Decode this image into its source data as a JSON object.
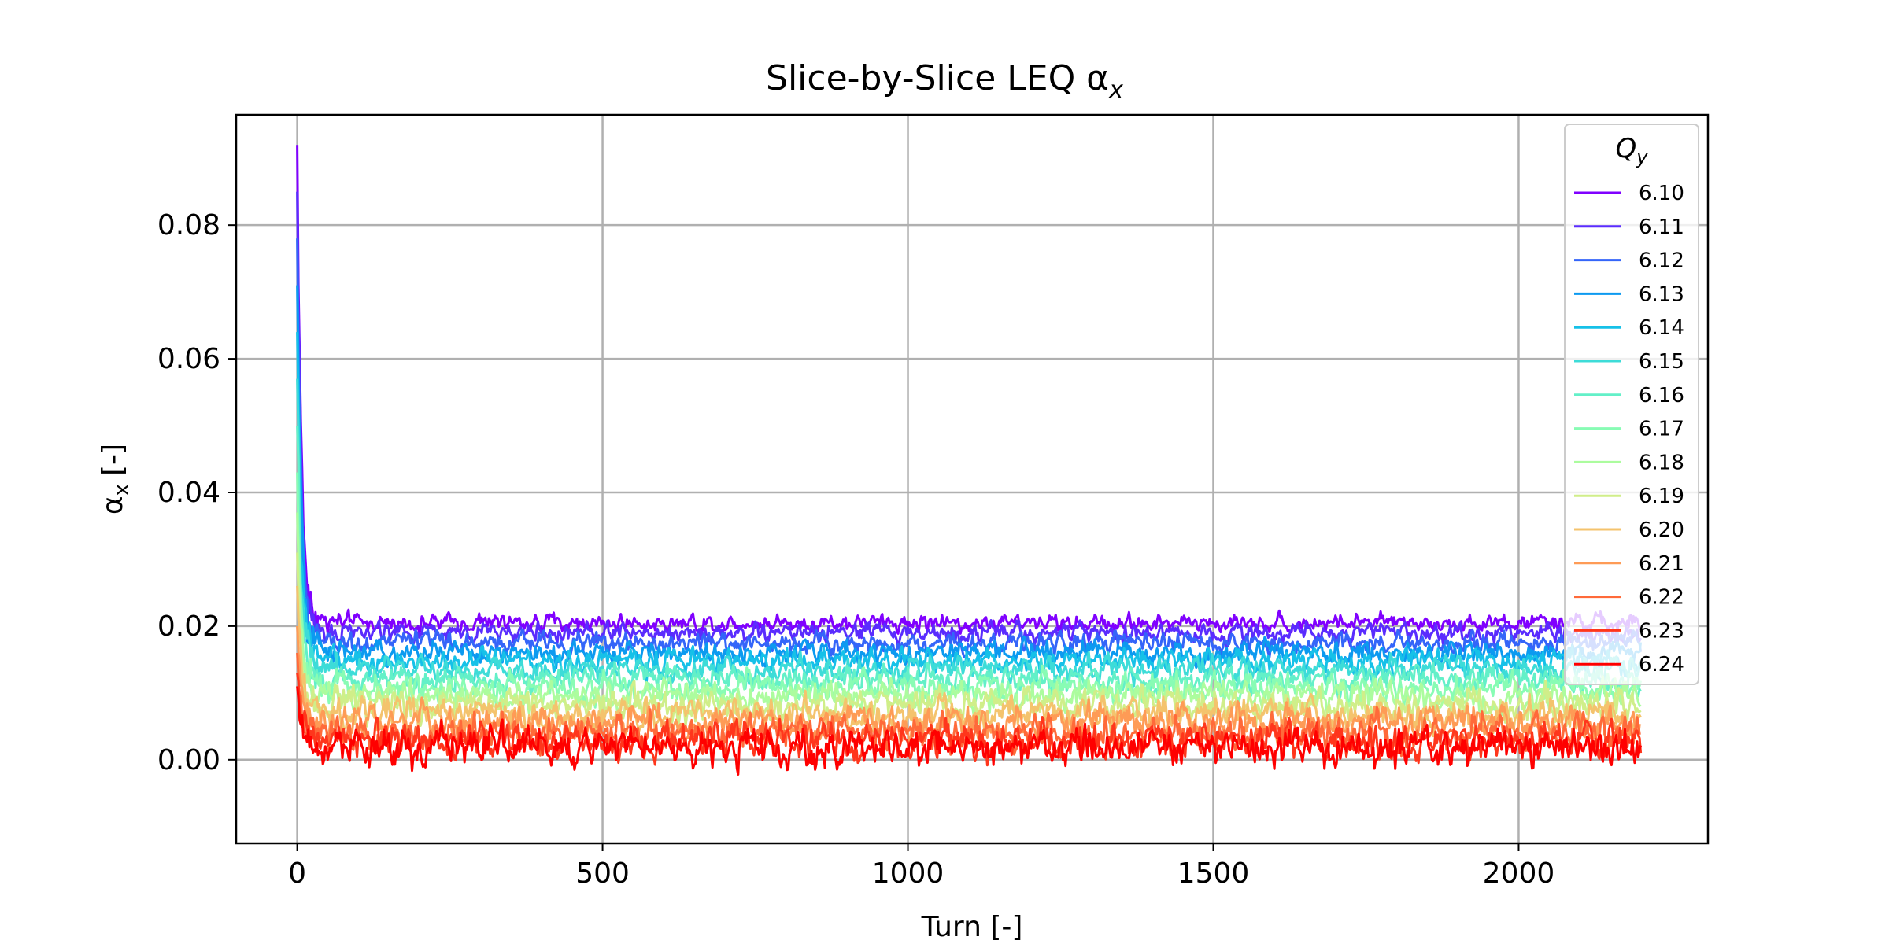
{
  "chart_data": {
    "type": "line",
    "title": "Slice-by-Slice LEQ α",
    "title_sub": "x",
    "xlabel": "Turn [-]",
    "ylabel": "α",
    "ylabel_sub": "x",
    "ylabel_unit": "[-]",
    "xlim": [
      -100,
      2310
    ],
    "ylim": [
      -0.0125,
      0.0965
    ],
    "xticks": [
      0,
      500,
      1000,
      1500,
      2000
    ],
    "xtick_labels": [
      "0",
      "500",
      "1000",
      "1500",
      "2000"
    ],
    "yticks": [
      0.0,
      0.02,
      0.04,
      0.06,
      0.08
    ],
    "ytick_labels": [
      "0.00",
      "0.02",
      "0.04",
      "0.06",
      "0.08"
    ],
    "grid": true,
    "legend": {
      "title": "Q",
      "title_sub": "y",
      "position": "top-right"
    },
    "x_range": [
      0,
      2200
    ],
    "series": [
      {
        "name": "6.10",
        "color": "#8000ff",
        "initial": 0.092,
        "level": 0.0205,
        "noise": 0.0012
      },
      {
        "name": "6.11",
        "color": "#5a2cfe",
        "initial": 0.085,
        "level": 0.019,
        "noise": 0.0013
      },
      {
        "name": "6.12",
        "color": "#3465f9",
        "initial": 0.078,
        "level": 0.0175,
        "noise": 0.0014
      },
      {
        "name": "6.13",
        "color": "#0c9af0",
        "initial": 0.071,
        "level": 0.016,
        "noise": 0.0015
      },
      {
        "name": "6.14",
        "color": "#16c1e8",
        "initial": 0.064,
        "level": 0.0148,
        "noise": 0.0016
      },
      {
        "name": "6.15",
        "color": "#3ddcd8",
        "initial": 0.057,
        "level": 0.0135,
        "noise": 0.0017
      },
      {
        "name": "6.16",
        "color": "#63f0c8",
        "initial": 0.05,
        "level": 0.012,
        "noise": 0.0018
      },
      {
        "name": "6.17",
        "color": "#88fcb4",
        "initial": 0.043,
        "level": 0.0108,
        "noise": 0.0019
      },
      {
        "name": "6.18",
        "color": "#acfc9e",
        "initial": 0.037,
        "level": 0.0095,
        "noise": 0.002
      },
      {
        "name": "6.19",
        "color": "#d0ee89",
        "initial": 0.031,
        "level": 0.0082,
        "noise": 0.0021
      },
      {
        "name": "6.20",
        "color": "#f4c36d",
        "initial": 0.026,
        "level": 0.0068,
        "noise": 0.0022
      },
      {
        "name": "6.21",
        "color": "#fe9b56",
        "initial": 0.02,
        "level": 0.0055,
        "noise": 0.0023
      },
      {
        "name": "6.22",
        "color": "#ff6a3a",
        "initial": 0.016,
        "level": 0.004,
        "noise": 0.0024
      },
      {
        "name": "6.23",
        "color": "#ff361c",
        "initial": 0.013,
        "level": 0.0028,
        "noise": 0.0025
      },
      {
        "name": "6.24",
        "color": "#ff0000",
        "initial": 0.011,
        "level": 0.0018,
        "noise": 0.0026
      }
    ]
  }
}
